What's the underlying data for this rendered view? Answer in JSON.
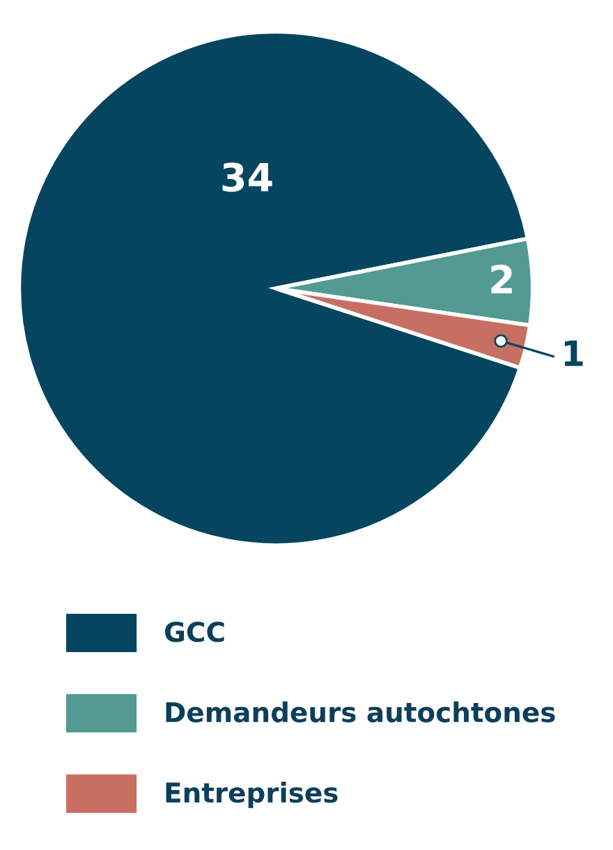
{
  "chart_data": {
    "type": "pie",
    "categories": [
      "GCC",
      "Demandeurs autochtones",
      "Entreprises"
    ],
    "values": [
      34,
      2,
      1
    ],
    "colors": [
      "#05455f",
      "#529a92",
      "#c86f63"
    ],
    "data_labels": true,
    "legend": "bottom"
  }
}
